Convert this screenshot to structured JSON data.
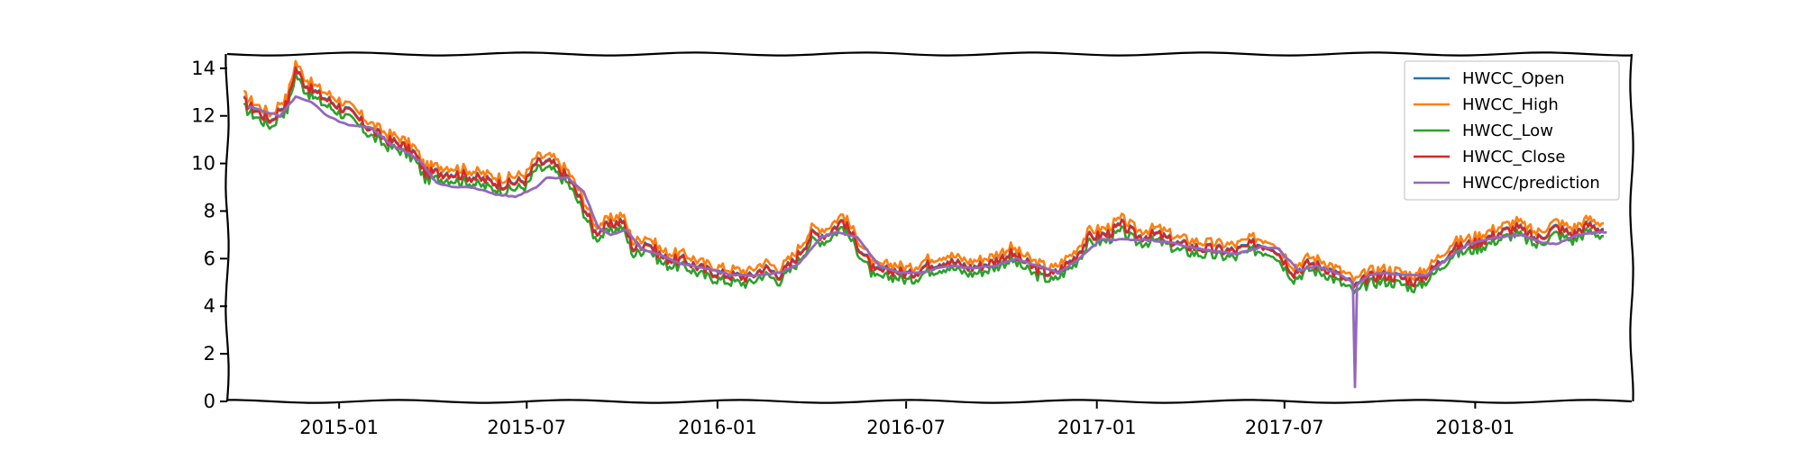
{
  "chart_data": {
    "type": "line",
    "title": "",
    "xlabel": "",
    "ylabel": "",
    "xlim": [
      "2014-09-15",
      "2018-06-01"
    ],
    "ylim": [
      0,
      14.6
    ],
    "x_ticks": [
      "2015-01",
      "2015-07",
      "2016-01",
      "2016-07",
      "2017-01",
      "2017-07",
      "2018-01"
    ],
    "y_ticks": [
      0,
      2,
      4,
      6,
      8,
      10,
      12,
      14
    ],
    "grid": false,
    "legend_position": "top-right",
    "series": [
      {
        "name": "HWCC_Open",
        "color": "#1f77b4"
      },
      {
        "name": "HWCC_High",
        "color": "#ff7f0e"
      },
      {
        "name": "HWCC_Low",
        "color": "#2ca02c"
      },
      {
        "name": "HWCC_Close",
        "color": "#d62728"
      },
      {
        "name": "HWCC/prediction",
        "color": "#9467bd"
      }
    ],
    "close_points": [
      [
        "2014-10-01",
        12.6
      ],
      [
        "2014-10-10",
        12.3
      ],
      [
        "2014-10-20",
        12.0
      ],
      [
        "2014-10-28",
        11.8
      ],
      [
        "2014-11-05",
        12.3
      ],
      [
        "2014-11-12",
        12.5
      ],
      [
        "2014-11-20",
        14.0
      ],
      [
        "2014-11-28",
        13.4
      ],
      [
        "2014-12-05",
        13.1
      ],
      [
        "2014-12-15",
        12.8
      ],
      [
        "2015-01-01",
        12.4
      ],
      [
        "2015-01-15",
        12.0
      ],
      [
        "2015-02-01",
        11.4
      ],
      [
        "2015-02-15",
        11.0
      ],
      [
        "2015-03-01",
        10.8
      ],
      [
        "2015-03-15",
        10.4
      ],
      [
        "2015-03-25",
        9.6
      ],
      [
        "2015-04-15",
        9.6
      ],
      [
        "2015-05-01",
        9.5
      ],
      [
        "2015-05-20",
        9.3
      ],
      [
        "2015-06-10",
        9.1
      ],
      [
        "2015-07-01",
        9.3
      ],
      [
        "2015-07-10",
        10.0
      ],
      [
        "2015-07-25",
        10.0
      ],
      [
        "2015-08-10",
        9.4
      ],
      [
        "2015-08-25",
        8.2
      ],
      [
        "2015-09-05",
        7.1
      ],
      [
        "2015-09-20",
        7.4
      ],
      [
        "2015-10-01",
        7.6
      ],
      [
        "2015-10-12",
        6.4
      ],
      [
        "2015-10-25",
        6.7
      ],
      [
        "2015-11-10",
        6.0
      ],
      [
        "2015-12-01",
        5.9
      ],
      [
        "2015-12-20",
        5.5
      ],
      [
        "2016-01-10",
        5.3
      ],
      [
        "2016-02-01",
        5.2
      ],
      [
        "2016-02-15",
        5.6
      ],
      [
        "2016-03-01",
        5.3
      ],
      [
        "2016-03-15",
        5.9
      ],
      [
        "2016-04-01",
        7.0
      ],
      [
        "2016-04-15",
        7.0
      ],
      [
        "2016-05-01",
        7.6
      ],
      [
        "2016-05-15",
        6.6
      ],
      [
        "2016-06-01",
        5.4
      ],
      [
        "2016-06-20",
        5.5
      ],
      [
        "2016-07-05",
        5.3
      ],
      [
        "2016-07-20",
        5.7
      ],
      [
        "2016-08-10",
        5.9
      ],
      [
        "2016-09-01",
        5.6
      ],
      [
        "2016-09-20",
        5.8
      ],
      [
        "2016-10-10",
        6.2
      ],
      [
        "2016-11-01",
        5.6
      ],
      [
        "2016-11-20",
        5.3
      ],
      [
        "2016-12-10",
        6.0
      ],
      [
        "2016-12-25",
        6.9
      ],
      [
        "2017-01-10",
        7.0
      ],
      [
        "2017-01-25",
        7.4
      ],
      [
        "2017-02-10",
        6.9
      ],
      [
        "2017-03-01",
        7.0
      ],
      [
        "2017-03-20",
        6.6
      ],
      [
        "2017-04-15",
        6.4
      ],
      [
        "2017-05-15",
        6.3
      ],
      [
        "2017-06-01",
        6.6
      ],
      [
        "2017-06-20",
        6.5
      ],
      [
        "2017-07-10",
        5.4
      ],
      [
        "2017-07-25",
        5.8
      ],
      [
        "2017-08-10",
        5.6
      ],
      [
        "2017-08-25",
        5.2
      ],
      [
        "2017-09-08",
        4.8
      ],
      [
        "2017-09-20",
        5.2
      ],
      [
        "2017-10-05",
        5.3
      ],
      [
        "2017-10-20",
        5.2
      ],
      [
        "2017-11-05",
        5.0
      ],
      [
        "2017-11-20",
        5.5
      ],
      [
        "2017-12-10",
        6.4
      ],
      [
        "2018-01-05",
        6.7
      ],
      [
        "2018-01-20",
        7.0
      ],
      [
        "2018-02-10",
        7.3
      ],
      [
        "2018-03-01",
        6.8
      ],
      [
        "2018-03-20",
        7.3
      ],
      [
        "2018-04-05",
        7.0
      ],
      [
        "2018-04-20",
        7.4
      ],
      [
        "2018-05-05",
        7.2
      ]
    ],
    "prediction_points": [
      [
        "2014-10-05",
        12.4
      ],
      [
        "2014-10-20",
        12.2
      ],
      [
        "2014-11-05",
        12.0
      ],
      [
        "2014-11-20",
        12.8
      ],
      [
        "2014-12-05",
        12.6
      ],
      [
        "2014-12-20",
        12.0
      ],
      [
        "2015-01-10",
        11.6
      ],
      [
        "2015-02-01",
        11.5
      ],
      [
        "2015-02-20",
        10.8
      ],
      [
        "2015-03-10",
        10.4
      ],
      [
        "2015-03-20",
        10.1
      ],
      [
        "2015-04-05",
        9.2
      ],
      [
        "2015-04-20",
        9.0
      ],
      [
        "2015-05-10",
        9.0
      ],
      [
        "2015-06-01",
        8.7
      ],
      [
        "2015-06-20",
        8.6
      ],
      [
        "2015-07-10",
        9.0
      ],
      [
        "2015-07-20",
        9.4
      ],
      [
        "2015-08-10",
        9.4
      ],
      [
        "2015-08-25",
        8.8
      ],
      [
        "2015-09-08",
        7.3
      ],
      [
        "2015-09-20",
        7.0
      ],
      [
        "2015-10-05",
        7.2
      ],
      [
        "2015-10-20",
        6.4
      ],
      [
        "2015-11-05",
        6.2
      ],
      [
        "2015-11-25",
        5.8
      ],
      [
        "2015-12-20",
        5.6
      ],
      [
        "2016-01-15",
        5.3
      ],
      [
        "2016-02-10",
        5.3
      ],
      [
        "2016-03-01",
        5.4
      ],
      [
        "2016-03-20",
        5.8
      ],
      [
        "2016-04-10",
        6.9
      ],
      [
        "2016-04-25",
        7.1
      ],
      [
        "2016-05-15",
        6.9
      ],
      [
        "2016-06-05",
        5.7
      ],
      [
        "2016-06-25",
        5.4
      ],
      [
        "2016-07-15",
        5.4
      ],
      [
        "2016-08-10",
        5.7
      ],
      [
        "2016-09-01",
        5.6
      ],
      [
        "2016-09-25",
        5.7
      ],
      [
        "2016-10-15",
        6.0
      ],
      [
        "2016-11-05",
        5.7
      ],
      [
        "2016-11-25",
        5.4
      ],
      [
        "2016-12-15",
        6.0
      ],
      [
        "2017-01-05",
        6.8
      ],
      [
        "2017-01-25",
        6.8
      ],
      [
        "2017-02-15",
        6.8
      ],
      [
        "2017-03-10",
        6.7
      ],
      [
        "2017-04-10",
        6.4
      ],
      [
        "2017-05-15",
        6.2
      ],
      [
        "2017-06-10",
        6.5
      ],
      [
        "2017-06-25",
        6.4
      ],
      [
        "2017-07-15",
        5.5
      ],
      [
        "2017-08-01",
        5.7
      ],
      [
        "2017-08-20",
        5.4
      ],
      [
        "2017-09-05",
        5.0
      ],
      [
        "2017-09-07",
        0.6
      ],
      [
        "2017-09-09",
        4.9
      ],
      [
        "2017-09-20",
        5.3
      ],
      [
        "2017-10-05",
        5.4
      ],
      [
        "2017-10-25",
        5.3
      ],
      [
        "2017-11-15",
        5.3
      ],
      [
        "2017-12-05",
        6.0
      ],
      [
        "2017-12-25",
        6.6
      ],
      [
        "2018-01-20",
        6.9
      ],
      [
        "2018-02-15",
        7.0
      ],
      [
        "2018-03-05",
        6.7
      ],
      [
        "2018-03-20",
        6.6
      ],
      [
        "2018-04-10",
        7.0
      ],
      [
        "2018-05-01",
        7.1
      ],
      [
        "2018-05-08",
        7.1
      ]
    ]
  }
}
